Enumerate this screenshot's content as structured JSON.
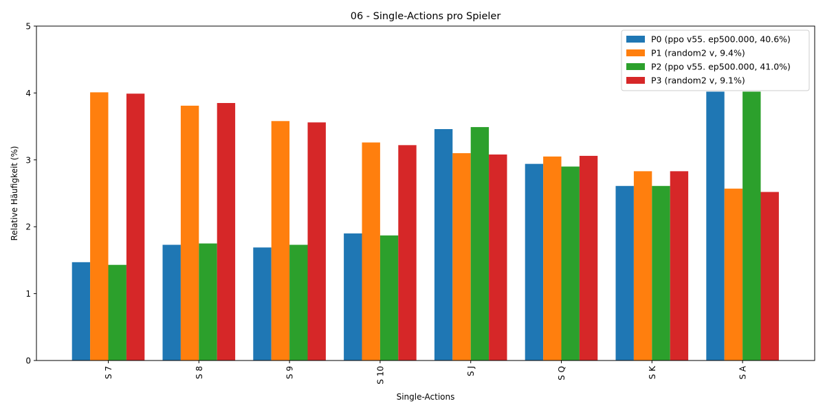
{
  "chart_data": {
    "type": "bar",
    "title": "06 - Single-Actions pro Spieler",
    "xlabel": "Single-Actions",
    "ylabel": "Relative Häufigkeit (%)",
    "ylim": [
      0,
      5
    ],
    "yticks": [
      "0",
      "1",
      "2",
      "3",
      "4",
      "5"
    ],
    "categories": [
      "S 7",
      "S 8",
      "S 9",
      "S 10",
      "S J",
      "S Q",
      "S K",
      "S A"
    ],
    "legend_position": "top-right",
    "grid": false,
    "series": [
      {
        "name": "P0 (ppo v55. ep500.000, 40.6%)",
        "color": "#1f77b4",
        "values": [
          1.47,
          1.73,
          1.69,
          1.9,
          3.46,
          2.94,
          2.61,
          4.02
        ]
      },
      {
        "name": "P1 (random2 v, 9.4%)",
        "color": "#ff7f0e",
        "values": [
          4.01,
          3.81,
          3.58,
          3.26,
          3.1,
          3.05,
          2.83,
          2.57
        ]
      },
      {
        "name": "P2 (ppo v55. ep500.000, 41.0%)",
        "color": "#2ca02c",
        "values": [
          1.43,
          1.75,
          1.73,
          1.87,
          3.49,
          2.9,
          2.61,
          4.02
        ]
      },
      {
        "name": "P3 (random2 v, 9.1%)",
        "color": "#d62728",
        "values": [
          3.99,
          3.85,
          3.56,
          3.22,
          3.08,
          3.06,
          2.83,
          2.52
        ]
      }
    ]
  }
}
